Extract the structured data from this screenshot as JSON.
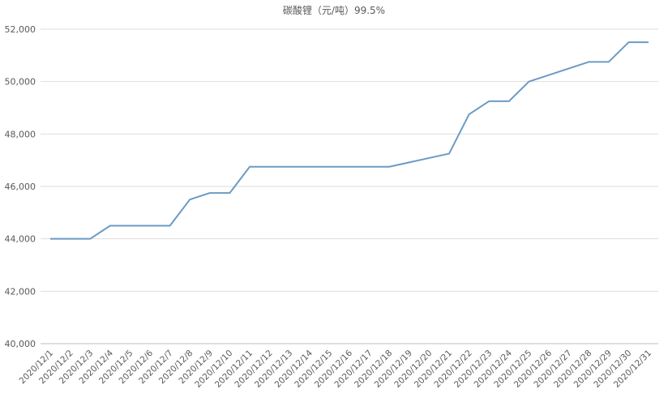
{
  "chart_data": {
    "type": "line",
    "title": "碳酸锂（元/吨）99.5%",
    "xlabel": "",
    "ylabel": "",
    "ylim": [
      40000,
      52000
    ],
    "yticks": [
      "40,000",
      "42,000",
      "44,000",
      "46,000",
      "48,000",
      "50,000",
      "52,000"
    ],
    "grid": true,
    "line_color": "#6b9bc4",
    "categories": [
      "2020/12/1",
      "2020/12/2",
      "2020/12/3",
      "2020/12/4",
      "2020/12/5",
      "2020/12/6",
      "2020/12/7",
      "2020/12/8",
      "2020/12/9",
      "2020/12/10",
      "2020/12/11",
      "2020/12/12",
      "2020/12/13",
      "2020/12/14",
      "2020/12/15",
      "2020/12/16",
      "2020/12/17",
      "2020/12/18",
      "2020/12/19",
      "2020/12/20",
      "2020/12/21",
      "2020/12/22",
      "2020/12/23",
      "2020/12/24",
      "2020/12/25",
      "2020/12/26",
      "2020/12/27",
      "2020/12/28",
      "2020/12/29",
      "2020/12/30",
      "2020/12/31"
    ],
    "values": [
      44000,
      44000,
      44000,
      44500,
      null,
      null,
      44500,
      45500,
      45750,
      45750,
      46750,
      null,
      null,
      46750,
      46750,
      46750,
      46750,
      46750,
      null,
      null,
      47250,
      48750,
      49250,
      49250,
      50000,
      null,
      null,
      50750,
      50750,
      51500,
      51500
    ]
  }
}
